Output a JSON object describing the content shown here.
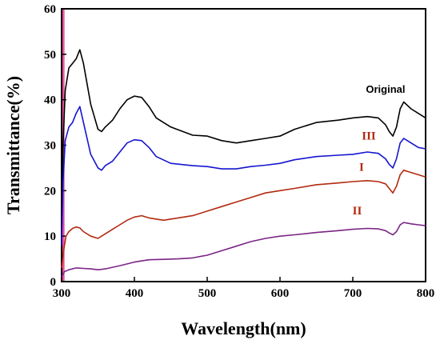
{
  "chart_data": {
    "type": "line",
    "title": "",
    "xlabel": "Wavelength(nm)",
    "ylabel": "Transmittance(%)",
    "xlim": [
      300,
      800
    ],
    "ylim": [
      0,
      60
    ],
    "xticks": [
      300,
      400,
      500,
      600,
      700,
      800
    ],
    "yticks": [
      0,
      10,
      20,
      30,
      40,
      50,
      60
    ],
    "grid": false,
    "series": [
      {
        "name": "Original",
        "color": "#000000",
        "x": [
          300,
          302,
          305,
          310,
          315,
          320,
          325,
          330,
          340,
          350,
          355,
          360,
          370,
          380,
          390,
          400,
          410,
          420,
          430,
          450,
          480,
          500,
          520,
          540,
          560,
          580,
          600,
          620,
          650,
          680,
          700,
          720,
          735,
          745,
          750,
          755,
          760,
          765,
          770,
          780,
          790,
          800
        ],
        "y": [
          10,
          30,
          42,
          47,
          48,
          49,
          51,
          48,
          39,
          33.5,
          33,
          34,
          35.5,
          38,
          40,
          40.8,
          40.5,
          38.5,
          36,
          34,
          32.2,
          32,
          31,
          30.5,
          31,
          31.5,
          32,
          33.5,
          35,
          35.5,
          36,
          36.3,
          36,
          34.5,
          33,
          32,
          34,
          38,
          39.5,
          38,
          37,
          36
        ]
      },
      {
        "name": "III",
        "color": "#1515d0",
        "x": [
          300,
          302,
          305,
          310,
          315,
          320,
          325,
          330,
          340,
          350,
          355,
          360,
          370,
          380,
          390,
          400,
          410,
          420,
          430,
          450,
          480,
          500,
          520,
          540,
          560,
          580,
          600,
          620,
          650,
          680,
          700,
          720,
          735,
          745,
          750,
          755,
          760,
          765,
          770,
          780,
          790,
          800
        ],
        "y": [
          8,
          22,
          31,
          34,
          35,
          37,
          38.5,
          35,
          28,
          25,
          24.5,
          25.5,
          26.5,
          28.5,
          30.5,
          31.2,
          31,
          29.5,
          27.5,
          26,
          25.5,
          25.3,
          24.8,
          24.8,
          25.3,
          25.6,
          26,
          26.8,
          27.5,
          27.8,
          28,
          28.5,
          28.2,
          27,
          25.8,
          25,
          27,
          30.5,
          31.5,
          30.5,
          29.5,
          29.2
        ]
      },
      {
        "name": "I",
        "color": "#b22a10",
        "x": [
          300,
          303,
          306,
          310,
          315,
          320,
          325,
          330,
          340,
          350,
          360,
          370,
          380,
          390,
          400,
          410,
          420,
          440,
          460,
          480,
          500,
          520,
          540,
          560,
          580,
          600,
          620,
          650,
          680,
          700,
          720,
          735,
          745,
          750,
          755,
          760,
          765,
          770,
          780,
          790,
          800
        ],
        "y": [
          3,
          7,
          10,
          11,
          11.7,
          12,
          11.8,
          11,
          10,
          9.5,
          10.5,
          11.5,
          12.5,
          13.5,
          14.2,
          14.5,
          14,
          13.5,
          14,
          14.5,
          15.5,
          16.5,
          17.5,
          18.5,
          19.5,
          20,
          20.5,
          21.3,
          21.7,
          22,
          22.2,
          22,
          21.5,
          20.5,
          19.5,
          21,
          23.5,
          24.5,
          24,
          23.5,
          23
        ]
      },
      {
        "name": "II",
        "color": "#7a2585",
        "x": [
          300,
          304,
          310,
          320,
          330,
          340,
          350,
          360,
          380,
          400,
          420,
          440,
          460,
          480,
          500,
          520,
          540,
          560,
          580,
          600,
          620,
          650,
          680,
          700,
          720,
          735,
          745,
          750,
          755,
          760,
          765,
          770,
          780,
          790,
          800
        ],
        "y": [
          1,
          2.2,
          2.6,
          3,
          2.9,
          2.8,
          2.6,
          2.8,
          3.5,
          4.3,
          4.8,
          4.9,
          5,
          5.2,
          5.8,
          6.8,
          7.8,
          8.8,
          9.5,
          10,
          10.3,
          10.8,
          11.2,
          11.5,
          11.7,
          11.6,
          11.2,
          10.7,
          10.3,
          11,
          12.5,
          13,
          12.7,
          12.5,
          12.3
        ]
      }
    ],
    "annotations": [
      {
        "text": "Original",
        "x": 745,
        "y": 41.5,
        "color": "#000000"
      },
      {
        "text": "III",
        "x": 722,
        "y": 31.2,
        "color": "#b22a10"
      },
      {
        "text": "I",
        "x": 712,
        "y": 24.4,
        "color": "#b22a10"
      },
      {
        "text": "II",
        "x": 706,
        "y": 14.8,
        "color": "#b22a10"
      }
    ],
    "highlight_band": {
      "x_from": 300,
      "x_to": 304,
      "color": "#e0147a"
    }
  }
}
